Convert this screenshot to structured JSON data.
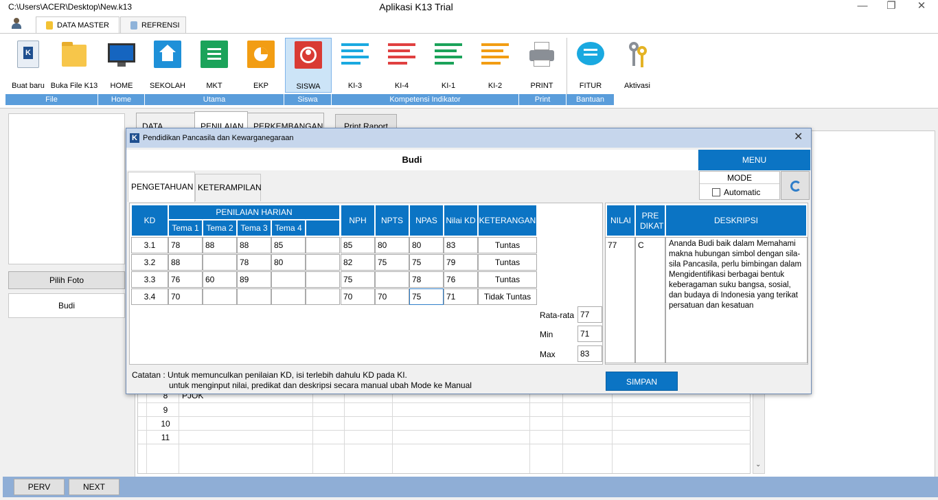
{
  "window": {
    "path": "C:\\Users\\ACER\\Desktop\\New.k13",
    "title": "Aplikasi K13 Trial"
  },
  "app_tabs": [
    "DATA MASTER",
    "REFRENSI"
  ],
  "ribbon": {
    "buttons": [
      "Buat baru",
      "Buka File K13",
      "HOME",
      "SEKOLAH",
      "MKT",
      "EKP",
      "SISWA",
      "KI-3",
      "KI-4",
      "KI-1",
      "KI-2",
      "PRINT",
      "FITUR",
      "Aktivasi"
    ],
    "groups": [
      "File",
      "Home",
      "Utama",
      "Siswa",
      "Kompetensi Indikator",
      "Print",
      "Bantuan"
    ]
  },
  "left": {
    "pilih_foto": "Pilih Foto",
    "name": "Budi"
  },
  "subtabs": [
    "DATA SISWA",
    "PENILAIAN",
    "PERKEMBANGAN"
  ],
  "print_raport": "Print Raport",
  "bg_rows": [
    {
      "no": "8",
      "name": "PJOK"
    },
    {
      "no": "9",
      "name": ""
    },
    {
      "no": "10",
      "name": ""
    },
    {
      "no": "11",
      "name": ""
    }
  ],
  "nav": {
    "prev": "PERV",
    "next": "NEXT"
  },
  "dialog": {
    "logo": "K",
    "title": "Pendidikan Pancasila dan Kewarganegaraan",
    "student": "Budi",
    "menu": "MENU",
    "mode_label": "MODE",
    "mode_option": "Automatic",
    "tabs": [
      "PENGETAHUAN",
      "KETERAMPILAN"
    ],
    "grid_headers": {
      "kd": "KD",
      "harian": "PENILAIAN HARIAN",
      "tema": [
        "Tema 1",
        "Tema 2",
        "Tema 3",
        "Tema 4",
        ""
      ],
      "nph": "NPH",
      "npts": "NPTS",
      "npas": "NPAS",
      "nilai_kd": "Nilai KD",
      "ket": "KETERANGAN"
    },
    "rows": [
      {
        "kd": "3.1",
        "t": [
          "78",
          "88",
          "88",
          "85",
          ""
        ],
        "nph": "85",
        "npts": "80",
        "npas": "80",
        "nilai": "83",
        "ket": "Tuntas"
      },
      {
        "kd": "3.2",
        "t": [
          "88",
          "",
          "78",
          "80",
          ""
        ],
        "nph": "82",
        "npts": "75",
        "npas": "75",
        "nilai": "79",
        "ket": "Tuntas"
      },
      {
        "kd": "3.3",
        "t": [
          "76",
          "60",
          "89",
          "",
          ""
        ],
        "nph": "75",
        "npts": "",
        "npas": "78",
        "nilai": "76",
        "ket": "Tuntas"
      },
      {
        "kd": "3.4",
        "t": [
          "70",
          "",
          "",
          "",
          ""
        ],
        "nph": "70",
        "npts": "70",
        "npas": "75",
        "nilai": "71",
        "ket": "Tidak Tuntas"
      }
    ],
    "stats": {
      "rata_label": "Rata-rata",
      "rata": "77",
      "min_label": "Min",
      "min": "71",
      "max_label": "Max",
      "max": "83"
    },
    "right_headers": {
      "nilai": "NILAI",
      "predikat": "PRE DIKAT",
      "deskripsi": "DESKRIPSI"
    },
    "right_values": {
      "nilai": "77",
      "predikat": "C",
      "deskripsi": "Ananda Budi baik dalam Memahami makna hubungan simbol dengan sila-sila Pancasila, perlu bimbingan dalam Mengidentifikasi berbagai bentuk keberagaman suku bangsa, sosial, dan budaya di Indonesia yang terikat persatuan dan kesatuan"
    },
    "note1": "Catatan : Untuk memunculkan penilaian KD, isi terlebih dahulu KD pada KI.",
    "note2": "untuk menginput nilai, predikat dan deskripsi secara manual ubah Mode ke Manual",
    "simpan": "SIMPAN"
  },
  "colors": {
    "accent": "#0b74c4",
    "group_bar": "#5a9ddb"
  }
}
